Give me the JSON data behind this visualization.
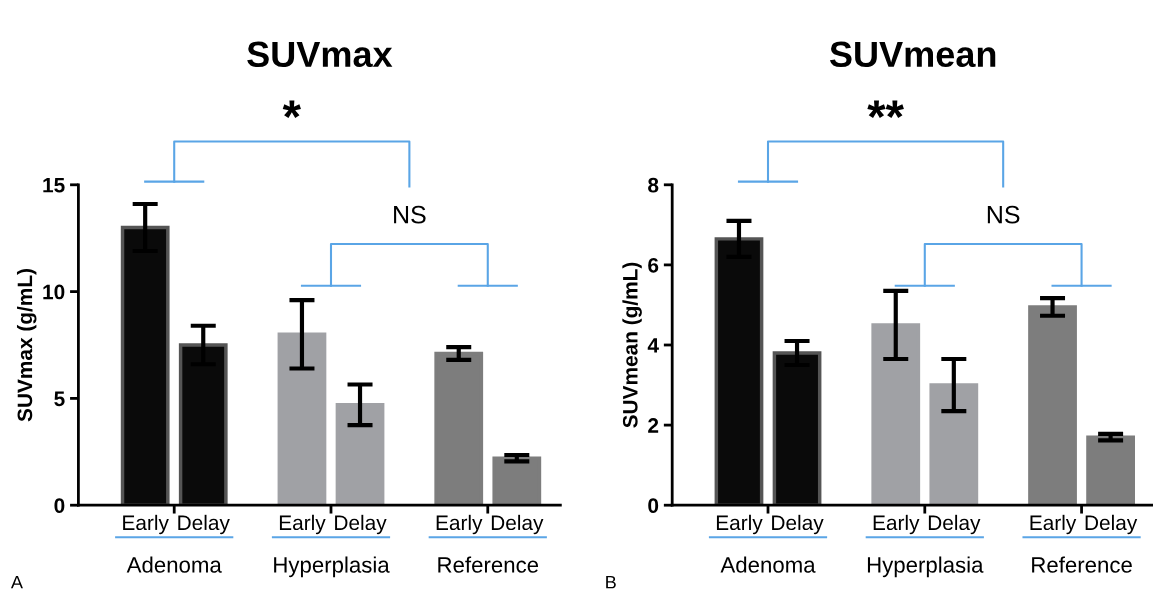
{
  "chart_data": [
    {
      "type": "bar",
      "title": "SUVmax",
      "ylabel": "SUVmax (g/mL)",
      "categories": [
        "Early",
        "Delay",
        "Early",
        "Delay",
        "Early",
        "Delay"
      ],
      "values": [
        13.0,
        7.5,
        8.0,
        4.7,
        7.1,
        2.2
      ],
      "errors": [
        1.1,
        0.9,
        1.6,
        0.95,
        0.3,
        0.15
      ],
      "colors": [
        "#0a0a0a",
        "#0a0a0a",
        "#a0a1a5",
        "#a0a1a5",
        "#7d7d7d",
        "#7d7d7d"
      ],
      "ylim": [
        0,
        15
      ],
      "yticks": [
        0,
        5,
        10,
        15
      ],
      "grid": false,
      "legend": false,
      "annotations": [
        "*",
        "NS",
        "Adenoma",
        "Hyperplasia",
        "Reference",
        "A"
      ]
    },
    {
      "type": "bar",
      "title": "SUVmean",
      "ylabel": "SUVmean (g/mL)",
      "categories": [
        "Early",
        "Delay",
        "Early",
        "Delay",
        "Early",
        "Delay"
      ],
      "values": [
        6.65,
        3.8,
        4.5,
        3.0,
        4.95,
        1.7
      ],
      "errors": [
        0.45,
        0.3,
        0.85,
        0.65,
        0.22,
        0.08
      ],
      "colors": [
        "#0a0a0a",
        "#0a0a0a",
        "#a0a1a5",
        "#a0a1a5",
        "#7d7d7d",
        "#7d7d7d"
      ],
      "ylim": [
        0,
        8
      ],
      "yticks": [
        0,
        2,
        4,
        6,
        8
      ],
      "grid": false,
      "legend": false,
      "annotations": [
        "**",
        "NS",
        "Adenoma",
        "Hyperplasia",
        "Reference",
        "B"
      ]
    }
  ]
}
